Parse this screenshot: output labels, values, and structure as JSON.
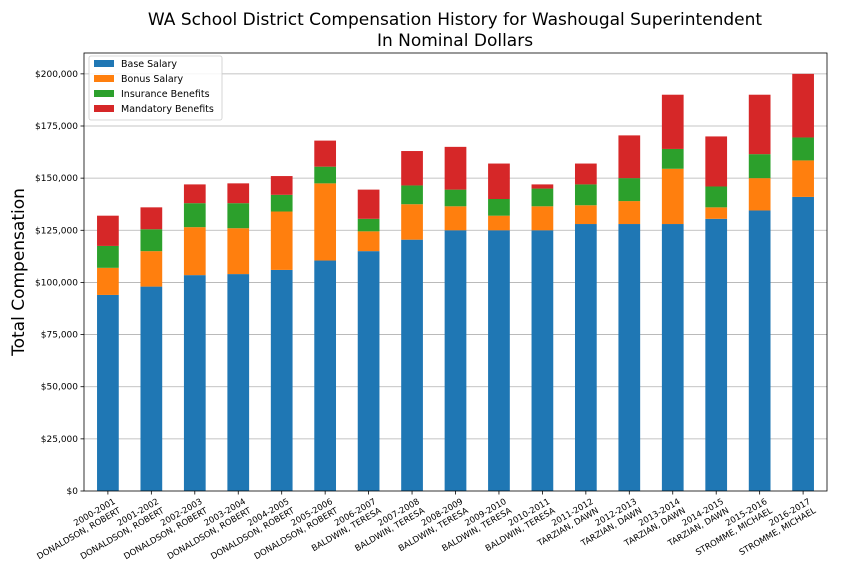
{
  "chart_data": {
    "type": "bar",
    "stacked": true,
    "title": "WA School District Compensation History for Washougal Superintendent",
    "subtitle": "In Nominal Dollars",
    "xlabel": "",
    "ylabel": "Total Compensation",
    "ylim": [
      0,
      210000
    ],
    "yticks": [
      0,
      25000,
      50000,
      75000,
      100000,
      125000,
      150000,
      175000,
      200000
    ],
    "ytick_labels": [
      "$0",
      "$25,000",
      "$50,000",
      "$75,000",
      "$100,000",
      "$125,000",
      "$150,000",
      "$175,000",
      "$200,000"
    ],
    "grid": "y",
    "legend_position": "top-left",
    "categories": [
      [
        "2000-2001",
        "DONALDSON, ROBERT"
      ],
      [
        "2001-2002",
        "DONALDSON, ROBERT"
      ],
      [
        "2002-2003",
        "DONALDSON, ROBERT"
      ],
      [
        "2003-2004",
        "DONALDSON, ROBERT"
      ],
      [
        "2004-2005",
        "DONALDSON, ROBERT"
      ],
      [
        "2005-2006",
        "DONALDSON, ROBERT"
      ],
      [
        "2006-2007",
        "BALDWIN, TERESA"
      ],
      [
        "2007-2008",
        "BALDWIN, TERESA"
      ],
      [
        "2008-2009",
        "BALDWIN, TERESA"
      ],
      [
        "2009-2010",
        "BALDWIN, TERESA"
      ],
      [
        "2010-2011",
        "BALDWIN, TERESA"
      ],
      [
        "2011-2012",
        "TARZIAN, DAWN"
      ],
      [
        "2012-2013",
        "TARZIAN, DAWN"
      ],
      [
        "2013-2014",
        "TARZIAN, DAWN"
      ],
      [
        "2014-2015",
        "TARZIAN, DAWN"
      ],
      [
        "2015-2016",
        "STROMME, MICHAEL"
      ],
      [
        "2016-2017",
        "STROMME, MICHAEL"
      ]
    ],
    "series": [
      {
        "name": "Base Salary",
        "color": "#1f77b4",
        "values": [
          94000,
          98000,
          103500,
          104000,
          106000,
          110500,
          115000,
          120500,
          125000,
          125000,
          125000,
          128000,
          128000,
          128000,
          130500,
          134500,
          141000
        ]
      },
      {
        "name": "Bonus Salary",
        "color": "#ff7f0e",
        "values": [
          13000,
          17000,
          23000,
          22000,
          28000,
          37000,
          9500,
          17000,
          11500,
          7000,
          11500,
          9000,
          11000,
          26500,
          5500,
          15500,
          17500
        ]
      },
      {
        "name": "Insurance Benefits",
        "color": "#2ca02c",
        "values": [
          10500,
          10500,
          11500,
          12000,
          8000,
          8000,
          6000,
          9000,
          8000,
          8000,
          8500,
          10000,
          11000,
          9500,
          10000,
          11500,
          11000
        ]
      },
      {
        "name": "Mandatory Benefits",
        "color": "#d62728",
        "values": [
          14500,
          10500,
          9000,
          9500,
          9000,
          12500,
          14000,
          16500,
          20500,
          17000,
          2000,
          10000,
          20500,
          26000,
          24000,
          28500,
          30500
        ]
      }
    ]
  }
}
